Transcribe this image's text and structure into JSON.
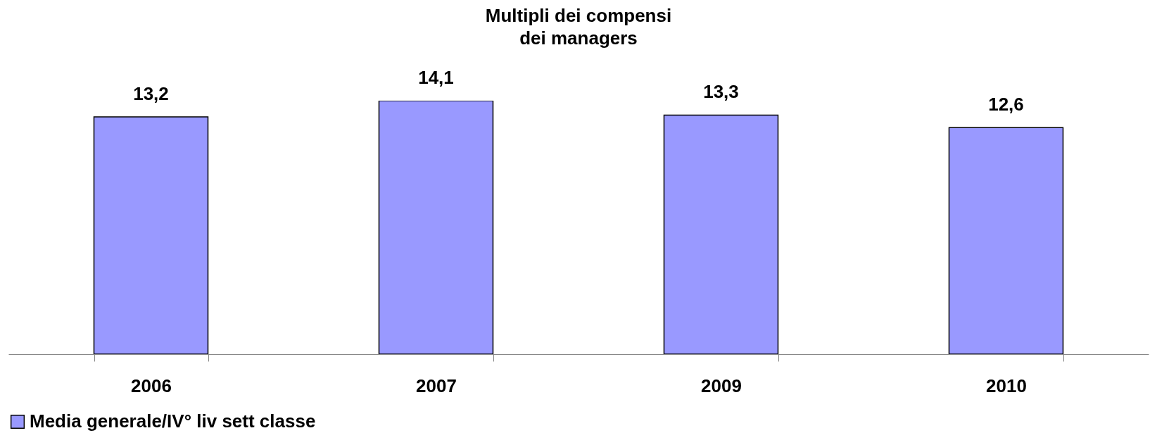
{
  "chart_data": {
    "type": "bar",
    "title": "Multipli dei compensi\ndei managers",
    "categories": [
      "2006",
      "2007",
      "2009",
      "2010"
    ],
    "series": [
      {
        "name": "Media generale/IV° liv sett classe",
        "color": "#9999ff",
        "values": [
          13.2,
          14.1,
          13.3,
          12.6
        ],
        "value_labels": [
          "13,2",
          "14,1",
          "13,3",
          "12,6"
        ]
      }
    ],
    "tick_labels": "x",
    "grid": false,
    "legend": "bottom"
  }
}
